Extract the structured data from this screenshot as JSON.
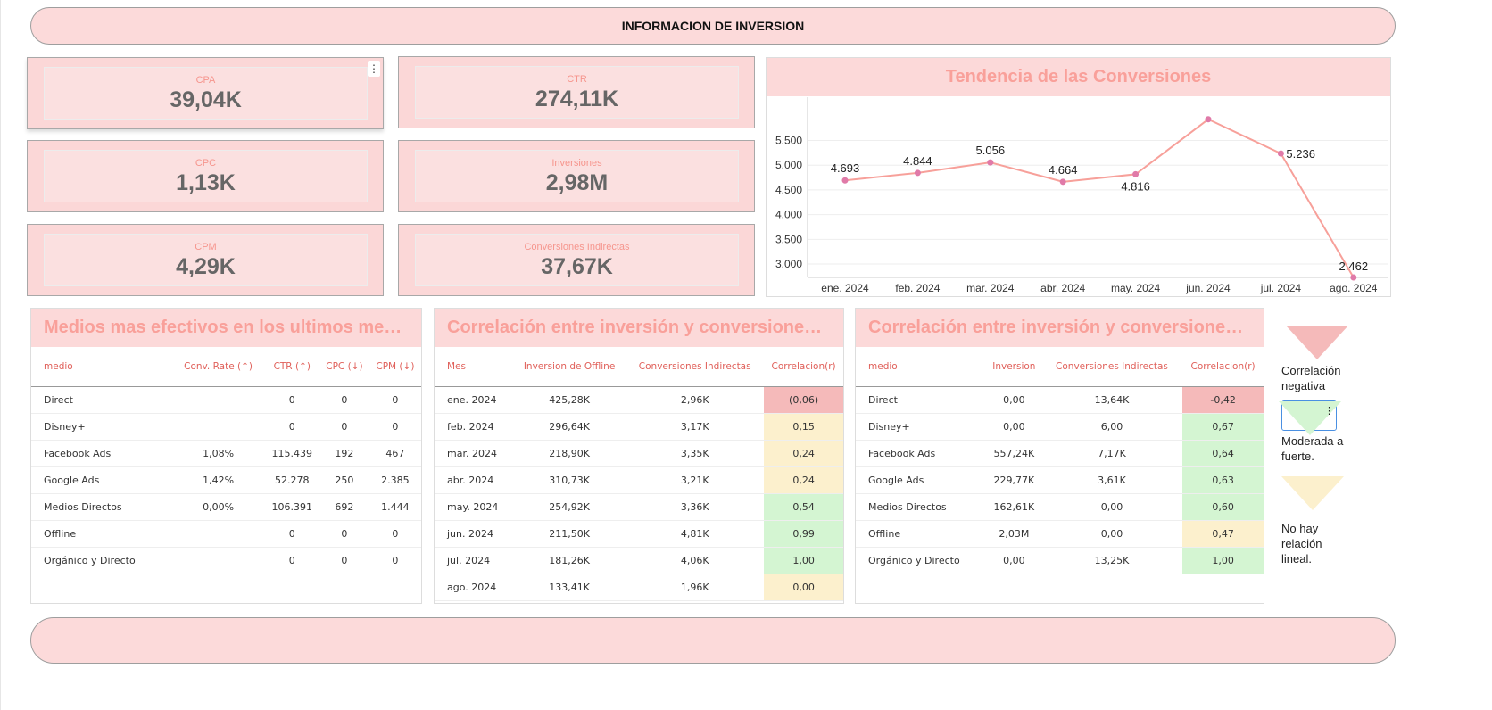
{
  "header": {
    "title": "INFORMACION DE INVERSION"
  },
  "kpis": [
    {
      "label": "CPA",
      "value": "39,04K"
    },
    {
      "label": "CTR",
      "value": "274,11K"
    },
    {
      "label": "CPC",
      "value": "1,13K"
    },
    {
      "label": "Inversiones",
      "value": "2,98M"
    },
    {
      "label": "CPM",
      "value": "4,29K"
    },
    {
      "label": "Conversiones Indirectas",
      "value": "37,67K"
    }
  ],
  "colors": {
    "header_bg": "#fcd9d9",
    "title": "#f9a09a",
    "line": "#f7a09a",
    "point": "#e07aa8",
    "neg": "#f5baba",
    "pos": "#d4f5d2",
    "neu": "#fcf0cd"
  },
  "chart_data": {
    "type": "line",
    "title": "Tendencia de las Conversiones",
    "categories": [
      "ene. 2024",
      "feb. 2024",
      "mar. 2024",
      "abr. 2024",
      "may. 2024",
      "jun. 2024",
      "jul. 2024",
      "ago. 2024"
    ],
    "values": [
      4693,
      4844,
      5056,
      4664,
      4816,
      5928,
      5236,
      2462
    ],
    "labels": [
      "4.693",
      "4.844",
      "5.056",
      "4.664",
      "4.816",
      "",
      "5.236",
      "2.462"
    ],
    "yticks": [
      "3.000",
      "3.500",
      "4.000",
      "4.500",
      "5.000",
      "5.500"
    ],
    "ytick_values": [
      3000,
      3500,
      4000,
      4500,
      5000,
      5500
    ],
    "ylim": [
      2730,
      6375
    ],
    "grid": true
  },
  "t1": {
    "title": "Medios mas efectivos en los ultimos meses",
    "headers": [
      "medio",
      "Conv. Rate (↑)",
      "CTR (↑)",
      "CPC (↓)",
      "CPM (↓)"
    ],
    "rows": [
      [
        "Direct",
        "",
        "0",
        "0",
        "0"
      ],
      [
        "Disney+",
        "",
        "0",
        "0",
        "0"
      ],
      [
        "Facebook Ads",
        "1,08%",
        "115.439",
        "192",
        "467"
      ],
      [
        "Google Ads",
        "1,42%",
        "52.278",
        "250",
        "2.385"
      ],
      [
        "Medios Directos",
        "0,00%",
        "106.391",
        "692",
        "1.444"
      ],
      [
        "Offline",
        "",
        "0",
        "0",
        "0"
      ],
      [
        "Orgánico y Directo",
        "",
        "0",
        "0",
        "0"
      ]
    ]
  },
  "t2": {
    "title": "Correlación entre inversión y conversiones por ...",
    "headers": [
      "Mes",
      "Inversion de Offline",
      "Conversiones Indirectas",
      "Correlacion(r)"
    ],
    "rows": [
      [
        "ene. 2024",
        "425,28K",
        "2,96K",
        "(0,06)",
        "neg"
      ],
      [
        "feb. 2024",
        "296,64K",
        "3,17K",
        "0,15",
        "neu"
      ],
      [
        "mar. 2024",
        "218,90K",
        "3,35K",
        "0,24",
        "neu"
      ],
      [
        "abr. 2024",
        "310,73K",
        "3,21K",
        "0,24",
        "neu"
      ],
      [
        "may. 2024",
        "254,92K",
        "3,36K",
        "0,54",
        "pos"
      ],
      [
        "jun. 2024",
        "211,50K",
        "4,81K",
        "0,99",
        "pos"
      ],
      [
        "jul. 2024",
        "181,26K",
        "4,06K",
        "1,00",
        "pos"
      ],
      [
        "ago. 2024",
        "133,41K",
        "1,96K",
        "0,00",
        "neu"
      ]
    ]
  },
  "t3": {
    "title": "Correlación entre inversión y conversiones por ...",
    "headers": [
      "medio",
      "Inversion",
      "Conversiones Indirectas",
      "Correlacion(r)"
    ],
    "rows": [
      [
        "Direct",
        "0,00",
        "13,64K",
        "-0,42",
        "neg"
      ],
      [
        "Disney+",
        "0,00",
        "6,00",
        "0,67",
        "pos"
      ],
      [
        "Facebook Ads",
        "557,24K",
        "7,17K",
        "0,64",
        "pos"
      ],
      [
        "Google Ads",
        "229,77K",
        "3,61K",
        "0,63",
        "pos"
      ],
      [
        "Medios Directos",
        "162,61K",
        "0,00",
        "0,60",
        "pos"
      ],
      [
        "Offline",
        "2,03M",
        "0,00",
        "0,47",
        "neu"
      ],
      [
        "Orgánico y Directo",
        "0,00",
        "13,25K",
        "1,00",
        "pos"
      ]
    ]
  },
  "legend": [
    {
      "label": "Correlación negativa",
      "color": "#f5baba"
    },
    {
      "label": "Moderada a fuerte.",
      "color": "#d4f5d2"
    },
    {
      "label": "No hay relación lineal.",
      "color": "#fcf0cd"
    }
  ]
}
